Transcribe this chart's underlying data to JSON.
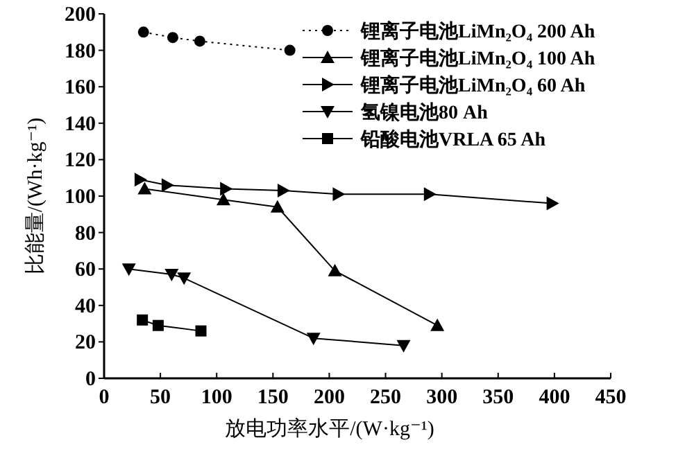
{
  "chart_data": {
    "type": "line",
    "xlabel": "放电功率水平/(W·kg⁻¹)",
    "ylabel": "比能量/(Wh·kg⁻¹)",
    "xlim": [
      0,
      450
    ],
    "ylim": [
      0,
      200
    ],
    "xticks": [
      0,
      50,
      100,
      150,
      200,
      250,
      300,
      350,
      400,
      450
    ],
    "yticks": [
      0,
      20,
      40,
      60,
      80,
      100,
      120,
      140,
      160,
      180,
      200
    ],
    "legend": "top right",
    "grid": false,
    "series": [
      {
        "name": "锂离子电池LiMn₂O₄ 200 Ah",
        "color": "#000000",
        "marker": "circle",
        "line_style": "dotted",
        "x": [
          35,
          61,
          85,
          165
        ],
        "values": [
          190,
          187,
          185,
          180
        ]
      },
      {
        "name": "锂离子电池LiMn₂O₄ 100 Ah",
        "color": "#000000",
        "marker": "triangle",
        "line_style": "solid",
        "x": [
          36,
          106,
          154,
          205,
          296
        ],
        "values": [
          104,
          98,
          94,
          59,
          29
        ]
      },
      {
        "name": "锂离子电池LiMn₂O₄ 60 Ah",
        "color": "#000000",
        "marker": "triangle-right",
        "line_style": "solid",
        "x": [
          32,
          56,
          108,
          159,
          208,
          289,
          398
        ],
        "values": [
          109,
          106,
          104,
          103,
          101,
          101,
          96
        ]
      },
      {
        "name": "氢镍电池80 Ah",
        "color": "#000000",
        "marker": "triangle-down",
        "line_style": "solid",
        "x": [
          22,
          60,
          71,
          186,
          266
        ],
        "values": [
          60,
          57,
          55,
          22,
          18
        ]
      },
      {
        "name": "铅酸电池VRLA 65 Ah",
        "color": "#000000",
        "marker": "square",
        "line_style": "solid",
        "x": [
          34,
          48,
          86
        ],
        "values": [
          32,
          29,
          26
        ]
      }
    ]
  }
}
